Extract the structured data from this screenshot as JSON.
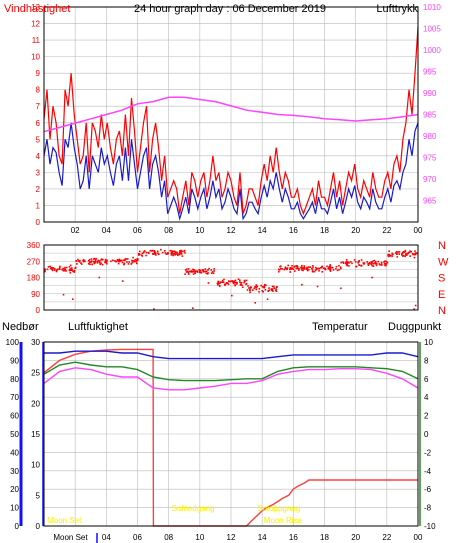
{
  "colors": {
    "wind": "#ff0000",
    "gust": "#ff0000",
    "pressure": "#ff44ff",
    "direction": "#ff0000",
    "rain": "#ff4040",
    "humidity": "#1a1acc",
    "temperature": "#228822",
    "dewpoint": "#ff44ff",
    "grid": "#bbbbbb",
    "frame": "#000000",
    "title": "#ffee00",
    "sun": "#ffee00",
    "rainAxis": "#ff0000",
    "humAxis": "#1111ff",
    "tempAxis": "#228822",
    "dewAxis": "#aa00aa"
  },
  "chart_data": [
    {
      "type": "line",
      "title": "24 hour graph day : 06 December 2019",
      "labels": {
        "left": "Vindhastighet",
        "right": "Lufttrykk"
      },
      "x_ticks": [
        "02",
        "04",
        "06",
        "08",
        "10",
        "12",
        "14",
        "16",
        "18",
        "20",
        "22",
        "00"
      ],
      "y_left": {
        "min": 0,
        "max": 13,
        "ticks": [
          0,
          1,
          2,
          3,
          4,
          5,
          6,
          7,
          8,
          9,
          10,
          11,
          12,
          13
        ]
      },
      "y_right": {
        "min": 960,
        "max": 1010,
        "ticks": [
          965,
          970,
          975,
          980,
          985,
          990,
          995,
          1000,
          1005,
          1010
        ]
      },
      "series": [
        {
          "name": "gust",
          "values": [
            6.2,
            8,
            5,
            7,
            6,
            4,
            3.5,
            8,
            7,
            9,
            6.5,
            5,
            3.5,
            4,
            6,
            3,
            6,
            5.5,
            4.5,
            6.5,
            5,
            6,
            4.5,
            3.5,
            5,
            5.5,
            4,
            6.5,
            4,
            7.5,
            5.5,
            3,
            4.5,
            6,
            7,
            3,
            5,
            6,
            4.5,
            2.5,
            4,
            1.5,
            2,
            2.5,
            2,
            0.5,
            1.5,
            2.5,
            1,
            3,
            2.5,
            1.5,
            2.5,
            3,
            1.5,
            2.5,
            4,
            2.5,
            3,
            1.5,
            2,
            3,
            2.5,
            1.5,
            1,
            3,
            0.5,
            1,
            2,
            2,
            1.5,
            1,
            2.5,
            3.5,
            2.5,
            4,
            3,
            4.5,
            3,
            2,
            3,
            2.5,
            1.5,
            1.5,
            2,
            1,
            0.5,
            1,
            1.5,
            2,
            1,
            2.5,
            1.5,
            1.5,
            1,
            2,
            3,
            1.5,
            2.5,
            1,
            2,
            3,
            2.5,
            3.5,
            2,
            1.5,
            2.5,
            2,
            1.5,
            3,
            2,
            1.5,
            1.5,
            2.5,
            3,
            2,
            3.5,
            4,
            3,
            5,
            6,
            8,
            6.5,
            9,
            11.8
          ]
        },
        {
          "name": "wind",
          "values": [
            4,
            5,
            3.5,
            4.5,
            4.2,
            3,
            2.2,
            5,
            4.5,
            6,
            4.5,
            3.5,
            2,
            2.5,
            4,
            2,
            4,
            3.5,
            3,
            4.5,
            3.5,
            4,
            3,
            2.2,
            3.5,
            4,
            2.5,
            4.5,
            2.5,
            5,
            3.5,
            2,
            3,
            4,
            4.5,
            2,
            3.5,
            4,
            3,
            1.5,
            2.5,
            0.5,
            1,
            1.5,
            1,
            0.2,
            0.8,
            1.5,
            0.5,
            2,
            1.5,
            0.8,
            1.5,
            2,
            0.8,
            1.5,
            2.5,
            1.5,
            2,
            0.8,
            1.2,
            2,
            1.5,
            0.8,
            0.5,
            2,
            0.2,
            0.5,
            1.2,
            1.2,
            0.8,
            0.5,
            1.5,
            2.2,
            1.5,
            2.5,
            2,
            3,
            2,
            1.2,
            2,
            1.5,
            0.8,
            0.8,
            1.2,
            0.5,
            0.2,
            0.5,
            0.8,
            1.2,
            0.5,
            1.5,
            0.8,
            0.8,
            0.5,
            1.2,
            2,
            0.8,
            1.5,
            0.5,
            1.2,
            2,
            1.5,
            2.2,
            1.2,
            0.8,
            1.5,
            1.2,
            0.8,
            2,
            1.2,
            0.8,
            0.8,
            1.5,
            2,
            1.2,
            2.2,
            2.5,
            2,
            3,
            3.5,
            5,
            4,
            5.5,
            6
          ]
        },
        {
          "name": "pressure",
          "x": [
            0,
            1,
            2,
            3,
            4,
            5,
            6,
            7,
            8,
            9,
            10,
            11,
            12,
            13,
            14,
            15,
            16,
            17,
            18,
            19,
            20,
            21,
            22,
            23,
            24
          ],
          "values": [
            981,
            982,
            983,
            984,
            985,
            986,
            987.5,
            988,
            989,
            989,
            988.5,
            988,
            987,
            986,
            985.5,
            985,
            984.8,
            984.5,
            984,
            983.8,
            983.5,
            983.8,
            984,
            984.5,
            985
          ]
        }
      ]
    },
    {
      "type": "scatter",
      "labels": {
        "right": [
          "N",
          "W",
          "S",
          "E",
          "N"
        ]
      },
      "y_ticks": [
        0,
        45,
        90,
        135,
        180,
        225,
        270,
        315,
        360
      ],
      "y_tick_labels": [
        "0",
        "",
        "90",
        "",
        "180",
        "",
        "270",
        "",
        "360"
      ],
      "series": [
        {
          "name": "direction",
          "segments": [
            {
              "from": 0,
              "to": 2,
              "mean": 225,
              "spread": 28
            },
            {
              "from": 2,
              "to": 6,
              "mean": 270,
              "spread": 22
            },
            {
              "from": 6,
              "to": 9,
              "mean": 315,
              "spread": 20
            },
            {
              "from": 9,
              "to": 11,
              "mean": 215,
              "spread": 18
            },
            {
              "from": 11,
              "to": 13,
              "mean": 150,
              "spread": 25
            },
            {
              "from": 13,
              "to": 15,
              "mean": 120,
              "spread": 25
            },
            {
              "from": 15,
              "to": 19,
              "mean": 230,
              "spread": 22
            },
            {
              "from": 19,
              "to": 22,
              "mean": 260,
              "spread": 22
            },
            {
              "from": 22,
              "to": 24,
              "mean": 310,
              "spread": 22
            }
          ],
          "outliers": [
            [
              1.2,
              85
            ],
            [
              1.8,
              60
            ],
            [
              3.5,
              180
            ],
            [
              5,
              160
            ],
            [
              7,
              5
            ],
            [
              9.5,
              10
            ],
            [
              10.5,
              150
            ],
            [
              12,
              80
            ],
            [
              13.5,
              40
            ],
            [
              14.3,
              60
            ],
            [
              16.5,
              140
            ],
            [
              17.5,
              130
            ],
            [
              19,
              120
            ],
            [
              21,
              180
            ],
            [
              23.7,
              5
            ],
            [
              23.8,
              25
            ]
          ]
        }
      ]
    },
    {
      "type": "line",
      "labels": {
        "rain": "Nedbør",
        "humidity": "Luftfuktighet",
        "temperature": "Temperatur",
        "dewpoint": "Duggpunkt"
      },
      "x_ticks": [
        "Moon Set",
        "04",
        "06",
        "08",
        "10",
        "12",
        "14",
        "16",
        "18",
        "20",
        "22",
        "00"
      ],
      "y_humidity": {
        "min": 0,
        "max": 100,
        "ticks": [
          0,
          10,
          20,
          30,
          40,
          50,
          60,
          70,
          80,
          90,
          100
        ]
      },
      "y_rain": {
        "min": 0,
        "max": 30,
        "ticks": [
          0,
          5,
          10,
          15,
          20,
          25,
          30
        ]
      },
      "y_temp": {
        "min": -10,
        "max": 10,
        "ticks": [
          -10,
          -8,
          -6,
          -4,
          -2,
          0,
          2,
          4,
          6,
          8,
          10
        ]
      },
      "annotations": [
        {
          "label": "Moon Set",
          "x": 0.2
        },
        {
          "label": "Solnedgang",
          "x": 8.2
        },
        {
          "label": "Soloppgang",
          "x": 13.7
        },
        {
          "label": "Moon Rise",
          "x": 14.1
        }
      ],
      "series": [
        {
          "name": "rain",
          "x": [
            0,
            1,
            2,
            3,
            4,
            5,
            6,
            6.8,
            7,
            7.02,
            13,
            13.3,
            13.6,
            14,
            14.3,
            14.7,
            15,
            15.3,
            15.7,
            16,
            16.3,
            16.7,
            17,
            24
          ],
          "values": [
            25,
            27,
            28,
            28.5,
            28.7,
            28.8,
            28.8,
            28.8,
            28.8,
            0,
            0,
            0.8,
            1.5,
            2.5,
            3,
            3.5,
            4,
            4.5,
            5,
            6,
            6.5,
            7,
            7.5,
            7.5
          ]
        },
        {
          "name": "humidity",
          "x": [
            0,
            1,
            2,
            3,
            4,
            5,
            6,
            7,
            8,
            9,
            10,
            11,
            12,
            13,
            14,
            15,
            16,
            17,
            18,
            19,
            20,
            21,
            22,
            23,
            24
          ],
          "values": [
            94,
            94,
            95,
            95,
            95,
            94,
            94,
            92,
            91,
            91,
            91,
            91,
            91,
            91,
            91,
            92,
            93,
            93,
            93,
            93,
            93,
            93,
            94,
            94,
            92
          ]
        },
        {
          "name": "temperature",
          "x": [
            0,
            1,
            2,
            3,
            4,
            5,
            6,
            7,
            8,
            9,
            10,
            11,
            12,
            13,
            14,
            15,
            16,
            17,
            18,
            19,
            20,
            21,
            22,
            23,
            24
          ],
          "values": [
            6.5,
            7.5,
            7.8,
            7.5,
            7.3,
            7.3,
            7,
            6.2,
            5.9,
            5.8,
            5.8,
            5.8,
            5.9,
            6,
            6,
            6.8,
            7.2,
            7.3,
            7.3,
            7.3,
            7.3,
            7.2,
            7.1,
            6.8,
            6
          ]
        },
        {
          "name": "dewpoint",
          "x": [
            0,
            1,
            2,
            3,
            4,
            5,
            6,
            7,
            8,
            9,
            10,
            11,
            12,
            13,
            14,
            15,
            16,
            17,
            18,
            19,
            20,
            21,
            22,
            23,
            24
          ],
          "values": [
            5.5,
            6.8,
            7.2,
            7,
            6.5,
            6.2,
            6.2,
            5,
            4.8,
            4.8,
            5,
            5.2,
            5.5,
            5.5,
            5.8,
            6.5,
            6.8,
            7,
            7,
            7.1,
            7.1,
            7,
            6.6,
            6,
            5
          ]
        }
      ]
    }
  ]
}
